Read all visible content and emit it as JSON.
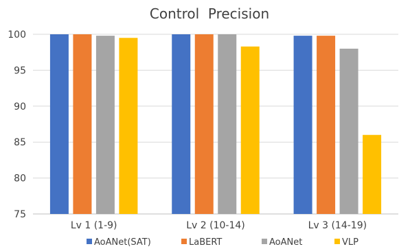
{
  "chart_data": {
    "type": "bar",
    "title": "Control  Precision",
    "xlabel": "",
    "ylabel": "",
    "categories": [
      "Lv 1 (1-9)",
      "Lv 2 (10-14)",
      "Lv 3 (14-19)"
    ],
    "ylim": [
      75,
      100
    ],
    "yticks": [
      75,
      80,
      85,
      90,
      95,
      100
    ],
    "grid": true,
    "legend_position": "bottom",
    "series": [
      {
        "name": "AoANet(SAT)",
        "color": "#4472c4",
        "values": [
          100,
          100,
          99.8
        ]
      },
      {
        "name": "LaBERT",
        "color": "#ed7d31",
        "values": [
          100,
          100,
          99.8
        ]
      },
      {
        "name": "AoANet",
        "color": "#a5a5a5",
        "values": [
          99.8,
          100,
          98.0
        ]
      },
      {
        "name": "VLP",
        "color": "#ffc000",
        "values": [
          99.5,
          98.3,
          86.0
        ]
      }
    ]
  }
}
